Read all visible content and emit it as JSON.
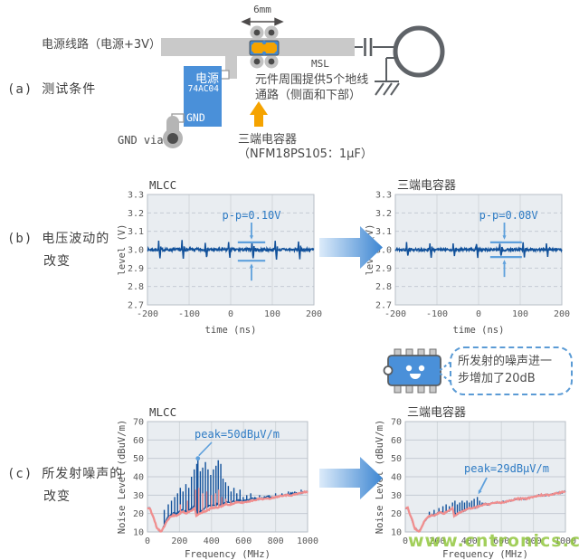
{
  "sections": {
    "a": {
      "prefix": "(a)",
      "title": "测试条件"
    },
    "b": {
      "prefix": "(b)",
      "line1": "电压波动的",
      "line2": "改变"
    },
    "c": {
      "prefix": "(c)",
      "line1": "所发射噪声的",
      "line2": "改变"
    }
  },
  "diagram": {
    "power_line_label": "电源线路（电源+3V）",
    "dimension_label": "6mm",
    "msl_label": "MSL",
    "ic": {
      "line1": "电源",
      "line2": "74AC04",
      "gnd": "GND"
    },
    "gnd_via_label": "GND via",
    "ground_note_line1": "元件周围提供5个地线",
    "ground_note_line2": "通路（侧面和下部）",
    "capacitor_label_line1": "三端电容器",
    "capacitor_label_line2": "（NFM18PS105：1μF）"
  },
  "callout": {
    "line1": "所发射的噪声进一",
    "line2": "步增加了20dB"
  },
  "watermark": "www.cntronics.com",
  "colors": {
    "ic_blue": "#4a90d9",
    "trace_gray": "#c9c9c9",
    "component_orange": "#f5a300",
    "waveform_blue": "#10509a",
    "reference_pink": "#f08e8e",
    "annotation_blue": "#2e7bc4",
    "annotation_line_blue": "#5ea0dc",
    "watermark_green": "#92c73e",
    "arrow_gradient_from": "#dcebfa",
    "arrow_gradient_to": "#3d86d2"
  },
  "chart_data": [
    {
      "id": "b-mlcc",
      "type": "line",
      "title": "MLCC",
      "xlabel": "time (ns)",
      "ylabel": "level (V)",
      "xlim": [
        -200,
        200
      ],
      "ylim": [
        2.7,
        3.3
      ],
      "xticks": [
        -200,
        -100,
        0,
        100,
        200
      ],
      "yticks": [
        3.3,
        3.2,
        3.1,
        3.0,
        2.9,
        2.8,
        2.7
      ],
      "grid": true,
      "annotation": {
        "text": "p-p=0.10V",
        "upper": 3.04,
        "lower": 2.94,
        "x_range": [
          17,
          83
        ],
        "arrow_x": 50,
        "text_x": 50
      },
      "series": [
        {
          "name": "supply-voltage",
          "color": "#10509a",
          "style": "wave",
          "baseline": 3.0,
          "p_p": 0.1,
          "noise": 0.008,
          "spike_period_ns": 56
        }
      ]
    },
    {
      "id": "b-3terminal",
      "type": "line",
      "title": "三端电容器",
      "xlabel": "time (ns)",
      "ylabel": "level (V)",
      "xlim": [
        -200,
        200
      ],
      "ylim": [
        2.7,
        3.3
      ],
      "xticks": [
        -200,
        -100,
        0,
        100,
        200
      ],
      "yticks": [
        3.3,
        3.2,
        3.1,
        3.0,
        2.9,
        2.8,
        2.7
      ],
      "grid": true,
      "annotation": {
        "text": "p-p=0.08V",
        "upper": 3.04,
        "lower": 2.96,
        "x_range": [
          28,
          104
        ],
        "arrow_x": 62,
        "text_x": 72
      },
      "series": [
        {
          "name": "supply-voltage",
          "color": "#10509a",
          "style": "wave",
          "baseline": 3.0,
          "p_p": 0.08,
          "noise": 0.007,
          "spike_period_ns": 56
        }
      ]
    },
    {
      "id": "c-mlcc",
      "type": "line",
      "title": "MLCC",
      "xlabel": "Frequency (MHz)",
      "ylabel": "Noise Level (dBuV/m)",
      "xlim": [
        0,
        1000
      ],
      "ylim": [
        10,
        70
      ],
      "xticks": [
        0,
        200,
        400,
        600,
        800,
        1000
      ],
      "yticks": [
        70,
        60,
        50,
        40,
        30,
        20,
        10
      ],
      "grid": true,
      "annotation": {
        "text": "peak=50dBμV/m",
        "point": [
          315,
          50
        ],
        "marker": "dot"
      },
      "series": [
        {
          "name": "mlcc-emission",
          "color": "#10509a",
          "style": "spiky",
          "points": [
            [
              15,
              23
            ],
            [
              40,
              17
            ],
            [
              60,
              12
            ],
            [
              85,
              10
            ],
            [
              100,
              13
            ],
            [
              120,
              17
            ],
            [
              140,
              19
            ],
            [
              160,
              20
            ],
            [
              185,
              20
            ],
            [
              200,
              21
            ],
            [
              220,
              22
            ],
            [
              240,
              21
            ],
            [
              260,
              22
            ],
            [
              280,
              23
            ],
            [
              295,
              24
            ],
            [
              305,
              20
            ],
            [
              330,
              21
            ],
            [
              355,
              23
            ],
            [
              380,
              24
            ],
            [
              400,
              24
            ],
            [
              430,
              25
            ],
            [
              460,
              25
            ],
            [
              490,
              26
            ],
            [
              520,
              26
            ],
            [
              560,
              27
            ],
            [
              600,
              27
            ],
            [
              650,
              28
            ],
            [
              700,
              28
            ],
            [
              750,
              29
            ],
            [
              800,
              29
            ],
            [
              850,
              30
            ],
            [
              900,
              31
            ],
            [
              950,
              31
            ],
            [
              1000,
              32
            ]
          ],
          "spikes": [
            [
              105,
              22
            ],
            [
              130,
              25
            ],
            [
              150,
              27
            ],
            [
              170,
              29
            ],
            [
              188,
              31
            ],
            [
              205,
              34
            ],
            [
              222,
              32
            ],
            [
              240,
              36
            ],
            [
              258,
              34
            ],
            [
              275,
              40
            ],
            [
              292,
              44
            ],
            [
              308,
              47
            ],
            [
              315,
              50
            ],
            [
              330,
              43
            ],
            [
              345,
              45
            ],
            [
              362,
              48
            ],
            [
              378,
              44
            ],
            [
              395,
              41
            ],
            [
              412,
              44
            ],
            [
              428,
              46
            ],
            [
              442,
              49
            ],
            [
              458,
              47
            ],
            [
              472,
              39
            ],
            [
              488,
              37
            ],
            [
              505,
              35
            ],
            [
              522,
              32
            ],
            [
              540,
              34
            ],
            [
              558,
              31
            ],
            [
              578,
              33
            ],
            [
              598,
              29
            ],
            [
              620,
              30
            ],
            [
              645,
              31
            ],
            [
              670,
              29
            ],
            [
              700,
              30
            ],
            [
              730,
              29
            ],
            [
              760,
              30
            ],
            [
              800,
              31
            ],
            [
              840,
              31
            ],
            [
              880,
              32
            ],
            [
              920,
              32
            ],
            [
              960,
              33
            ]
          ]
        },
        {
          "name": "reference",
          "color": "#f08e8e",
          "style": "smooth",
          "points": [
            [
              15,
              23
            ],
            [
              40,
              17
            ],
            [
              60,
              12
            ],
            [
              85,
              10
            ],
            [
              100,
              12
            ],
            [
              120,
              16
            ],
            [
              140,
              18
            ],
            [
              160,
              19
            ],
            [
              185,
              19
            ],
            [
              200,
              20
            ],
            [
              220,
              21
            ],
            [
              240,
              20
            ],
            [
              260,
              21
            ],
            [
              280,
              22
            ],
            [
              295,
              23
            ],
            [
              305,
              19
            ],
            [
              330,
              20
            ],
            [
              355,
              21
            ],
            [
              380,
              22
            ],
            [
              400,
              23
            ],
            [
              430,
              23
            ],
            [
              460,
              24
            ],
            [
              490,
              25
            ],
            [
              520,
              25
            ],
            [
              560,
              26
            ],
            [
              600,
              26
            ],
            [
              650,
              27
            ],
            [
              700,
              28
            ],
            [
              750,
              28
            ],
            [
              800,
              29
            ],
            [
              850,
              30
            ],
            [
              900,
              30
            ],
            [
              950,
              31
            ],
            [
              1000,
              32
            ]
          ],
          "spikes": [
            [
              205,
              25
            ],
            [
              250,
              27
            ],
            [
              300,
              33
            ],
            [
              320,
              34
            ],
            [
              345,
              31
            ],
            [
              370,
              32
            ],
            [
              400,
              30
            ],
            [
              425,
              31
            ],
            [
              445,
              33
            ],
            [
              465,
              29
            ],
            [
              490,
              28
            ],
            [
              520,
              27
            ],
            [
              550,
              27
            ]
          ]
        }
      ]
    },
    {
      "id": "c-3terminal",
      "type": "line",
      "title": "三端电容器",
      "xlabel": "Frequency (MHz)",
      "ylabel": "Noise Level (dBuV/m)",
      "xlim": [
        0,
        1000
      ],
      "ylim": [
        10,
        70
      ],
      "xticks": [
        0,
        200,
        400,
        600,
        800,
        1000
      ],
      "yticks": [
        70,
        60,
        50,
        40,
        30,
        20,
        10
      ],
      "grid": true,
      "annotation": {
        "text": "peak=29dBμV/m",
        "point": [
          450,
          29
        ],
        "marker": "arrow"
      },
      "series": [
        {
          "name": "emission",
          "color": "#10509a",
          "style": "spiky",
          "points": [
            [
              15,
              23
            ],
            [
              40,
              17
            ],
            [
              60,
              12
            ],
            [
              85,
              10
            ],
            [
              100,
              12
            ],
            [
              120,
              16
            ],
            [
              140,
              18
            ],
            [
              160,
              19
            ],
            [
              185,
              19
            ],
            [
              200,
              20
            ],
            [
              220,
              21
            ],
            [
              240,
              20
            ],
            [
              260,
              21
            ],
            [
              280,
              22
            ],
            [
              295,
              23
            ],
            [
              305,
              19
            ],
            [
              330,
              20
            ],
            [
              355,
              21
            ],
            [
              380,
              22
            ],
            [
              400,
              23
            ],
            [
              430,
              23
            ],
            [
              460,
              24
            ],
            [
              490,
              25
            ],
            [
              520,
              25
            ],
            [
              560,
              26
            ],
            [
              600,
              26
            ],
            [
              650,
              27
            ],
            [
              700,
              28
            ],
            [
              750,
              28
            ],
            [
              800,
              29
            ],
            [
              850,
              30
            ],
            [
              900,
              30
            ],
            [
              950,
              31
            ],
            [
              1000,
              32
            ]
          ],
          "spikes": [
            [
              150,
              21
            ],
            [
              180,
              22
            ],
            [
              210,
              23
            ],
            [
              235,
              24
            ],
            [
              255,
              25
            ],
            [
              275,
              24
            ],
            [
              295,
              26
            ],
            [
              310,
              27
            ],
            [
              325,
              25
            ],
            [
              340,
              26
            ],
            [
              355,
              27
            ],
            [
              370,
              26
            ],
            [
              385,
              27
            ],
            [
              400,
              26
            ],
            [
              415,
              27
            ],
            [
              430,
              28
            ],
            [
              450,
              29
            ],
            [
              465,
              27
            ],
            [
              480,
              26
            ],
            [
              500,
              26
            ]
          ]
        },
        {
          "name": "reference",
          "color": "#f08e8e",
          "style": "smooth",
          "points": [
            [
              15,
              23
            ],
            [
              40,
              17
            ],
            [
              60,
              12
            ],
            [
              85,
              10
            ],
            [
              100,
              12
            ],
            [
              120,
              16
            ],
            [
              140,
              18
            ],
            [
              160,
              19
            ],
            [
              185,
              19
            ],
            [
              200,
              20
            ],
            [
              220,
              21
            ],
            [
              240,
              20
            ],
            [
              260,
              21
            ],
            [
              280,
              22
            ],
            [
              295,
              23
            ],
            [
              305,
              19
            ],
            [
              330,
              20
            ],
            [
              355,
              21
            ],
            [
              380,
              22
            ],
            [
              400,
              23
            ],
            [
              430,
              23
            ],
            [
              460,
              24
            ],
            [
              490,
              25
            ],
            [
              520,
              25
            ],
            [
              560,
              26
            ],
            [
              600,
              26
            ],
            [
              650,
              27
            ],
            [
              700,
              28
            ],
            [
              750,
              28
            ],
            [
              800,
              29
            ],
            [
              850,
              30
            ],
            [
              900,
              30
            ],
            [
              950,
              31
            ],
            [
              1000,
              32
            ]
          ],
          "spikes": []
        }
      ]
    }
  ]
}
